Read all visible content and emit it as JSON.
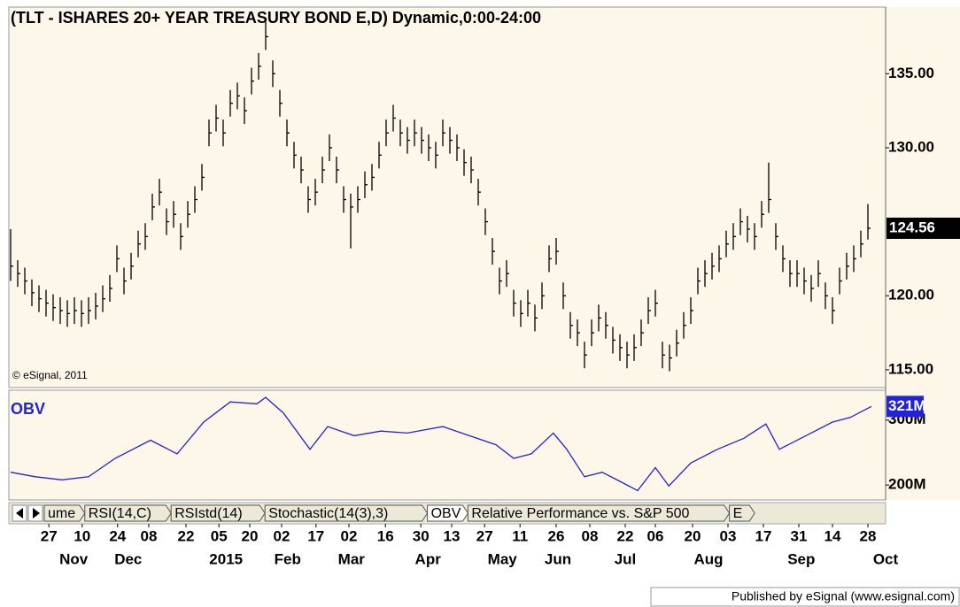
{
  "chart_data": [
    {
      "type": "ohlc",
      "title": "(TLT - ISHARES 20+ YEAR TREASURY BOND E,D) Dynamic,0:00-24:00",
      "annotation": "© eSignal, 2011",
      "color": "#000000",
      "high": [
        124.5,
        122.4,
        121.9,
        121.1,
        120.7,
        120.4,
        120.1,
        119.9,
        119.7,
        119.9,
        119.7,
        119.9,
        120.2,
        120.7,
        121.4,
        123.4,
        121.9,
        122.9,
        124.4,
        124.9,
        126.9,
        127.9,
        125.9,
        126.4,
        124.9,
        126.4,
        127.4,
        128.9,
        131.9,
        132.9,
        131.9,
        133.9,
        134.4,
        133.4,
        135.4,
        136.4,
        138.5,
        135.9,
        133.9,
        131.9,
        130.4,
        129.4,
        127.4,
        127.9,
        129.4,
        130.9,
        129.4,
        127.4,
        126.9,
        127.4,
        128.4,
        128.9,
        130.4,
        131.9,
        132.9,
        131.9,
        131.4,
        131.9,
        131.4,
        130.9,
        130.4,
        131.9,
        131.4,
        130.9,
        129.9,
        129.4,
        127.9,
        125.9,
        123.9,
        121.9,
        122.4,
        120.4,
        119.7,
        120.4,
        119.4,
        120.9,
        123.4,
        123.9,
        120.9,
        118.9,
        118.4,
        116.9,
        118.4,
        119.4,
        118.9,
        117.9,
        117.4,
        116.9,
        117.4,
        118.4,
        119.9,
        120.4,
        116.9,
        116.7,
        117.7,
        118.9,
        119.9,
        121.9,
        122.4,
        122.9,
        123.4,
        124.4,
        124.9,
        125.9,
        125.4,
        124.9,
        126.4,
        129,
        124.9,
        123.4,
        122.4,
        122.4,
        121.9,
        121.4,
        122.4,
        120.9,
        119.9,
        121.9,
        122.9,
        123.4,
        124.4,
        126.2
      ],
      "low": [
        121,
        120.6,
        120.1,
        119.3,
        118.9,
        118.6,
        118.3,
        118.1,
        117.9,
        118.1,
        117.9,
        118.1,
        118.4,
        118.9,
        119.6,
        121.6,
        120.1,
        121.1,
        122.6,
        123.1,
        125.1,
        126.1,
        124.1,
        124.6,
        123.1,
        124.6,
        125.6,
        127.1,
        130.1,
        131.1,
        130.1,
        132.1,
        132.6,
        131.6,
        133.6,
        134.6,
        136.6,
        134.1,
        132.1,
        130.1,
        128.6,
        127.6,
        125.6,
        126.1,
        127.6,
        129.1,
        127.6,
        125.6,
        123.2,
        125.6,
        126.6,
        127.1,
        128.6,
        130.1,
        131.1,
        130.1,
        129.6,
        130.1,
        129.6,
        129.1,
        128.6,
        130.1,
        129.6,
        129.1,
        128.1,
        127.6,
        126.1,
        124.1,
        122.1,
        120.1,
        120.6,
        118.6,
        117.9,
        118.6,
        117.6,
        119.1,
        121.6,
        122.1,
        119.1,
        117.1,
        116.6,
        115.1,
        116.6,
        117.6,
        117.1,
        116.1,
        115.6,
        115.1,
        115.6,
        116.6,
        118.1,
        118.6,
        115.1,
        114.9,
        115.9,
        117.1,
        118.1,
        120.1,
        120.6,
        121.1,
        121.6,
        122.6,
        123.1,
        124.1,
        123.6,
        123.1,
        124.6,
        125.6,
        123.1,
        121.6,
        120.6,
        120.6,
        120.1,
        119.6,
        120.6,
        119.1,
        118.1,
        120.1,
        121.1,
        121.6,
        122.6,
        123.8
      ],
      "close": [
        122,
        121.5,
        121,
        120.2,
        119.8,
        119.5,
        119.2,
        119,
        118.8,
        119,
        118.8,
        119,
        119.3,
        119.8,
        120.5,
        122.5,
        121,
        122,
        123.5,
        124,
        126,
        127,
        125,
        125.5,
        124,
        125.5,
        126.5,
        128,
        131,
        132,
        131,
        133,
        133.5,
        132.5,
        134.5,
        135.5,
        137.5,
        135,
        133,
        131,
        129.5,
        128.5,
        126.5,
        127,
        128.5,
        130,
        128.5,
        126.5,
        126,
        126.5,
        127.5,
        128,
        129.5,
        131,
        132,
        131,
        130.5,
        131,
        130.5,
        130,
        129.5,
        131,
        130.5,
        130,
        129,
        128.5,
        127,
        125,
        123,
        121,
        121.5,
        119.5,
        118.8,
        119.5,
        118.5,
        120,
        122.5,
        123,
        120,
        118,
        117.5,
        116,
        117.5,
        118.5,
        118,
        117,
        116.5,
        116,
        116.5,
        117.5,
        119,
        119.5,
        116,
        115.8,
        116.8,
        118,
        119,
        121,
        121.5,
        122,
        122.5,
        123.5,
        124,
        125,
        124.5,
        124,
        125.5,
        126.5,
        124,
        122.5,
        121.5,
        121.5,
        121,
        120.5,
        121.5,
        120,
        119,
        121,
        122,
        122.5,
        123.5,
        124.56
      ],
      "xlim": [
        0,
        123.5
      ],
      "ylim": [
        113.8,
        139.5
      ],
      "yticks": [
        {
          "value": 115,
          "label": "115.00"
        },
        {
          "value": 120,
          "label": "120.00"
        },
        {
          "value": 130,
          "label": "130.00"
        },
        {
          "value": 135,
          "label": "135.00"
        }
      ],
      "xticks": [
        {
          "value": 5.4,
          "label": "27"
        },
        {
          "value": 10.1,
          "label": "10"
        },
        {
          "value": 15.1,
          "label": "24"
        },
        {
          "value": 19.5,
          "label": "08"
        },
        {
          "value": 24.75,
          "label": "22"
        },
        {
          "value": 29.4,
          "label": "05"
        },
        {
          "value": 33.75,
          "label": "20"
        },
        {
          "value": 38.25,
          "label": "02"
        },
        {
          "value": 43.1,
          "label": "17"
        },
        {
          "value": 47.75,
          "label": "02"
        },
        {
          "value": 52.9,
          "label": "16"
        },
        {
          "value": 57.9,
          "label": "30"
        },
        {
          "value": 62.25,
          "label": "13"
        },
        {
          "value": 66.9,
          "label": "27"
        },
        {
          "value": 71.9,
          "label": "11"
        },
        {
          "value": 77,
          "label": "26"
        },
        {
          "value": 81.75,
          "label": "08"
        },
        {
          "value": 86.75,
          "label": "22"
        },
        {
          "value": 91,
          "label": "06"
        },
        {
          "value": 96.25,
          "label": "20"
        },
        {
          "value": 101.25,
          "label": "03"
        },
        {
          "value": 106.25,
          "label": "17"
        },
        {
          "value": 111.25,
          "label": "31"
        },
        {
          "value": 116,
          "label": "14"
        },
        {
          "value": 121,
          "label": "28"
        }
      ],
      "month_ticks": [
        {
          "value": 8.9,
          "label": "Nov"
        },
        {
          "value": 16.6,
          "label": "Dec"
        },
        {
          "value": 30.4,
          "label": "2015"
        },
        {
          "value": 39.1,
          "label": "Feb"
        },
        {
          "value": 48.1,
          "label": "Mar"
        },
        {
          "value": 58.9,
          "label": "Apr"
        },
        {
          "value": 69.4,
          "label": "May"
        },
        {
          "value": 77.25,
          "label": "Jun"
        },
        {
          "value": 86.75,
          "label": "Jul"
        },
        {
          "value": 98.5,
          "label": "Aug"
        },
        {
          "value": 111.6,
          "label": "Sep"
        },
        {
          "value": 123.5,
          "label": "Oct"
        }
      ]
    },
    {
      "type": "line",
      "title": "OBV",
      "color": "#2222dd",
      "x": [
        0,
        3.5,
        7.25,
        11,
        14.75,
        19.75,
        23.5,
        27.25,
        31,
        34.75,
        36,
        38.5,
        42.25,
        44.75,
        48.5,
        52.25,
        56,
        61,
        64.75,
        68.5,
        71,
        73.5,
        76.6,
        78.5,
        81,
        83.5,
        86,
        88.5,
        91,
        92.9,
        96,
        99.75,
        103.5,
        106.6,
        108.5,
        112.25,
        116,
        118.5,
        121.5
      ],
      "values": [
        219.7,
        212.7,
        208,
        212.7,
        241,
        269,
        248,
        297,
        328,
        325,
        335,
        311,
        255,
        290,
        276,
        283,
        280,
        290,
        276,
        262,
        241,
        248,
        280,
        255,
        212.7,
        219.7,
        205.6,
        191.5,
        226.8,
        198.6,
        233.8,
        255,
        272,
        294,
        255,
        276,
        297,
        304,
        321
      ],
      "last_value_label": "321M",
      "xlim": [
        0,
        123.5
      ],
      "ylim": [
        177,
        346
      ],
      "yticks": [
        {
          "value": 200,
          "label": "200M"
        },
        {
          "value": 300,
          "label": "300M"
        }
      ]
    }
  ],
  "tabs": [
    "ume",
    "RSI(14,C)",
    "RSIstd(14)",
    "Stochastic(14(3),3)",
    "OBV",
    "Relative Performance vs. S&P 500",
    "E"
  ],
  "footer": "Published by eSignal (www.esignal.com)"
}
